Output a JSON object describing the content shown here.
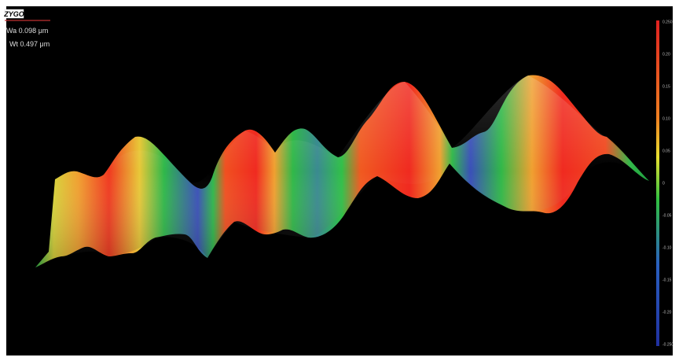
{
  "header": {
    "logo": "ZYGO",
    "wa": "Wa 0.098 μm",
    "wt": "Wt 0.497 μm"
  },
  "colorbar": {
    "labels": [
      "0.250",
      "0.20",
      "0.15",
      "0.10",
      "0.05",
      "0",
      "-0.05",
      "-0.10",
      "-0.15",
      "-0.20",
      "-0.250"
    ]
  }
}
